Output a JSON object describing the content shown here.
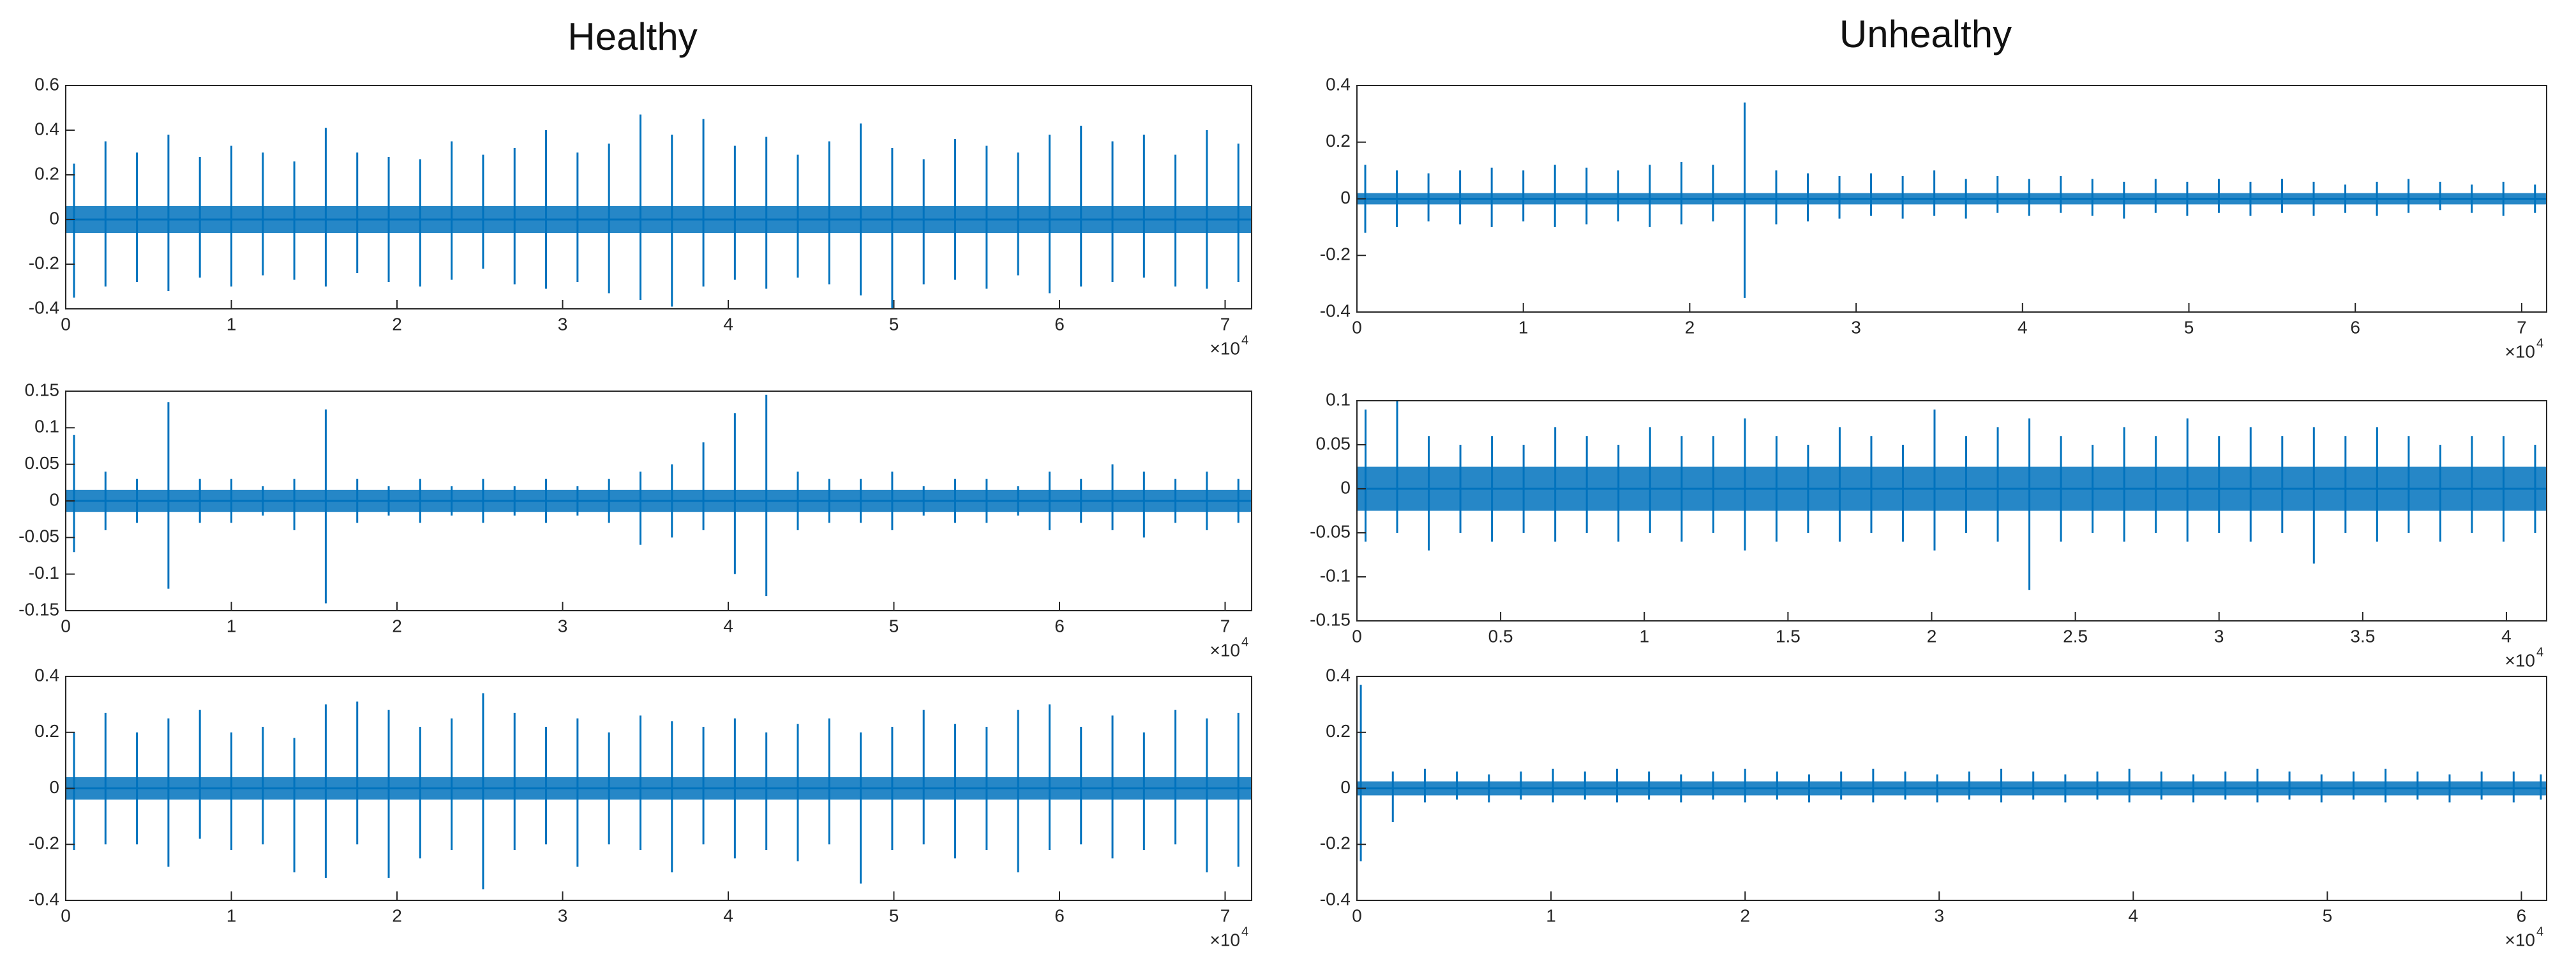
{
  "column_titles": [
    "Healthy",
    "Unhealthy"
  ],
  "chart_data": [
    {
      "type": "spikes",
      "color": "#0072BD",
      "x": [
        0.05,
        0.24,
        0.43,
        0.62,
        0.81,
        1.0,
        1.19,
        1.38,
        1.57,
        1.76,
        1.95,
        2.14,
        2.33,
        2.52,
        2.71,
        2.9,
        3.09,
        3.28,
        3.47,
        3.66,
        3.85,
        4.04,
        4.23,
        4.42,
        4.61,
        4.8,
        4.99,
        5.18,
        5.37,
        5.56,
        5.75,
        5.94,
        6.13,
        6.32,
        6.51,
        6.7,
        6.89,
        7.08
      ],
      "upper": [
        0.25,
        0.35,
        0.3,
        0.38,
        0.28,
        0.33,
        0.3,
        0.26,
        0.41,
        0.3,
        0.28,
        0.27,
        0.35,
        0.29,
        0.32,
        0.4,
        0.3,
        0.34,
        0.47,
        0.38,
        0.45,
        0.33,
        0.37,
        0.29,
        0.35,
        0.43,
        0.32,
        0.27,
        0.36,
        0.33,
        0.3,
        0.38,
        0.42,
        0.35,
        0.38,
        0.29,
        0.4,
        0.34
      ],
      "lower": [
        -0.35,
        -0.3,
        -0.28,
        -0.32,
        -0.26,
        -0.3,
        -0.25,
        -0.27,
        -0.3,
        -0.24,
        -0.28,
        -0.3,
        -0.27,
        -0.22,
        -0.29,
        -0.31,
        -0.28,
        -0.33,
        -0.36,
        -0.39,
        -0.3,
        -0.27,
        -0.31,
        -0.26,
        -0.29,
        -0.34,
        -0.4,
        -0.29,
        -0.27,
        -0.31,
        -0.25,
        -0.33,
        -0.3,
        -0.28,
        -0.26,
        -0.3,
        -0.31,
        -0.28
      ],
      "noise": 0.06,
      "xlim": [
        0,
        7.16
      ],
      "xticks": [
        0,
        1,
        2,
        3,
        4,
        5,
        6,
        7
      ],
      "ylim": [
        -0.4,
        0.6
      ],
      "yticks": [
        -0.4,
        -0.2,
        0,
        0.2,
        0.4,
        0.6
      ],
      "x_exponent_base": "×10",
      "x_exponent": "4"
    },
    {
      "type": "spikes",
      "color": "#0072BD",
      "x": [
        0.05,
        0.24,
        0.43,
        0.62,
        0.81,
        1.0,
        1.19,
        1.38,
        1.57,
        1.76,
        1.95,
        2.14,
        2.33,
        2.52,
        2.71,
        2.9,
        3.09,
        3.28,
        3.47,
        3.66,
        3.85,
        4.04,
        4.23,
        4.42,
        4.61,
        4.8,
        4.99,
        5.18,
        5.37,
        5.56,
        5.75,
        5.94,
        6.13,
        6.32,
        6.51,
        6.7,
        6.89,
        7.08
      ],
      "upper": [
        0.09,
        0.04,
        0.03,
        0.135,
        0.03,
        0.03,
        0.02,
        0.03,
        0.125,
        0.03,
        0.02,
        0.03,
        0.02,
        0.03,
        0.02,
        0.03,
        0.02,
        0.03,
        0.04,
        0.05,
        0.08,
        0.12,
        0.145,
        0.04,
        0.03,
        0.03,
        0.04,
        0.02,
        0.03,
        0.03,
        0.02,
        0.04,
        0.03,
        0.05,
        0.04,
        0.03,
        0.04,
        0.03
      ],
      "lower": [
        -0.07,
        -0.04,
        -0.03,
        -0.12,
        -0.03,
        -0.03,
        -0.02,
        -0.04,
        -0.14,
        -0.03,
        -0.02,
        -0.03,
        -0.02,
        -0.03,
        -0.02,
        -0.03,
        -0.02,
        -0.03,
        -0.06,
        -0.05,
        -0.04,
        -0.1,
        -0.13,
        -0.04,
        -0.03,
        -0.03,
        -0.04,
        -0.02,
        -0.03,
        -0.03,
        -0.02,
        -0.04,
        -0.03,
        -0.04,
        -0.05,
        -0.03,
        -0.04,
        -0.03
      ],
      "noise": 0.015,
      "xlim": [
        0,
        7.16
      ],
      "xticks": [
        0,
        1,
        2,
        3,
        4,
        5,
        6,
        7
      ],
      "ylim": [
        -0.15,
        0.15
      ],
      "yticks": [
        -0.15,
        -0.1,
        -0.05,
        0,
        0.05,
        0.1,
        0.15
      ],
      "x_exponent_base": "×10",
      "x_exponent": "4"
    },
    {
      "type": "spikes",
      "color": "#0072BD",
      "x": [
        0.05,
        0.24,
        0.43,
        0.62,
        0.81,
        1.0,
        1.19,
        1.38,
        1.57,
        1.76,
        1.95,
        2.14,
        2.33,
        2.52,
        2.71,
        2.9,
        3.09,
        3.28,
        3.47,
        3.66,
        3.85,
        4.04,
        4.23,
        4.42,
        4.61,
        4.8,
        4.99,
        5.18,
        5.37,
        5.56,
        5.75,
        5.94,
        6.13,
        6.32,
        6.51,
        6.7,
        6.89,
        7.08
      ],
      "upper": [
        0.2,
        0.27,
        0.2,
        0.25,
        0.28,
        0.2,
        0.22,
        0.18,
        0.3,
        0.31,
        0.28,
        0.22,
        0.25,
        0.34,
        0.27,
        0.22,
        0.25,
        0.2,
        0.26,
        0.24,
        0.22,
        0.25,
        0.2,
        0.23,
        0.25,
        0.2,
        0.22,
        0.28,
        0.23,
        0.22,
        0.28,
        0.3,
        0.22,
        0.26,
        0.2,
        0.28,
        0.25,
        0.27
      ],
      "lower": [
        -0.22,
        -0.2,
        -0.2,
        -0.28,
        -0.18,
        -0.22,
        -0.2,
        -0.3,
        -0.32,
        -0.2,
        -0.32,
        -0.25,
        -0.22,
        -0.36,
        -0.22,
        -0.2,
        -0.28,
        -0.2,
        -0.22,
        -0.3,
        -0.2,
        -0.25,
        -0.22,
        -0.26,
        -0.2,
        -0.34,
        -0.22,
        -0.2,
        -0.25,
        -0.22,
        -0.3,
        -0.22,
        -0.2,
        -0.25,
        -0.22,
        -0.2,
        -0.3,
        -0.28
      ],
      "noise": 0.04,
      "xlim": [
        0,
        7.16
      ],
      "xticks": [
        0,
        1,
        2,
        3,
        4,
        5,
        6,
        7
      ],
      "ylim": [
        -0.4,
        0.4
      ],
      "yticks": [
        -0.4,
        -0.2,
        0,
        0.2,
        0.4
      ],
      "x_exponent_base": "×10",
      "x_exponent": "4"
    },
    {
      "type": "spikes",
      "color": "#0072BD",
      "x": [
        0.05,
        0.24,
        0.43,
        0.62,
        0.81,
        1.0,
        1.19,
        1.38,
        1.57,
        1.76,
        1.95,
        2.14,
        2.33,
        2.52,
        2.71,
        2.9,
        3.09,
        3.28,
        3.47,
        3.66,
        3.85,
        4.04,
        4.23,
        4.42,
        4.61,
        4.8,
        4.99,
        5.18,
        5.37,
        5.56,
        5.75,
        5.94,
        6.13,
        6.32,
        6.51,
        6.7,
        6.89,
        7.08
      ],
      "upper": [
        0.12,
        0.1,
        0.09,
        0.1,
        0.11,
        0.1,
        0.12,
        0.11,
        0.1,
        0.12,
        0.13,
        0.12,
        0.34,
        0.1,
        0.09,
        0.08,
        0.09,
        0.08,
        0.1,
        0.07,
        0.08,
        0.07,
        0.08,
        0.07,
        0.06,
        0.07,
        0.06,
        0.07,
        0.06,
        0.07,
        0.06,
        0.05,
        0.06,
        0.07,
        0.06,
        0.05,
        0.06,
        0.05
      ],
      "lower": [
        -0.12,
        -0.1,
        -0.08,
        -0.09,
        -0.1,
        -0.08,
        -0.1,
        -0.09,
        -0.08,
        -0.1,
        -0.09,
        -0.08,
        -0.35,
        -0.09,
        -0.08,
        -0.07,
        -0.06,
        -0.07,
        -0.06,
        -0.07,
        -0.05,
        -0.06,
        -0.05,
        -0.06,
        -0.07,
        -0.05,
        -0.06,
        -0.05,
        -0.06,
        -0.05,
        -0.06,
        -0.05,
        -0.06,
        -0.05,
        -0.04,
        -0.05,
        -0.06,
        -0.05
      ],
      "noise": 0.02,
      "xlim": [
        0,
        7.15
      ],
      "xticks": [
        0,
        1,
        2,
        3,
        4,
        5,
        6,
        7
      ],
      "ylim": [
        -0.4,
        0.4
      ],
      "yticks": [
        -0.4,
        -0.2,
        0,
        0.2,
        0.4
      ],
      "x_exponent_base": "×10",
      "x_exponent": "4"
    },
    {
      "type": "spikes",
      "color": "#0072BD",
      "x": [
        0.03,
        0.14,
        0.25,
        0.36,
        0.47,
        0.58,
        0.69,
        0.8,
        0.91,
        1.02,
        1.13,
        1.24,
        1.35,
        1.46,
        1.57,
        1.68,
        1.79,
        1.9,
        2.01,
        2.12,
        2.23,
        2.34,
        2.45,
        2.56,
        2.67,
        2.78,
        2.89,
        3.0,
        3.11,
        3.22,
        3.33,
        3.44,
        3.55,
        3.66,
        3.77,
        3.88,
        3.99,
        4.1
      ],
      "upper": [
        0.09,
        0.1,
        0.06,
        0.05,
        0.06,
        0.05,
        0.07,
        0.06,
        0.05,
        0.07,
        0.06,
        0.06,
        0.08,
        0.06,
        0.05,
        0.07,
        0.06,
        0.05,
        0.09,
        0.06,
        0.07,
        0.08,
        0.06,
        0.05,
        0.07,
        0.06,
        0.08,
        0.06,
        0.07,
        0.06,
        0.07,
        0.06,
        0.07,
        0.06,
        0.05,
        0.06,
        0.06,
        0.05
      ],
      "lower": [
        -0.06,
        -0.05,
        -0.07,
        -0.05,
        -0.06,
        -0.05,
        -0.06,
        -0.05,
        -0.06,
        -0.05,
        -0.06,
        -0.05,
        -0.07,
        -0.06,
        -0.05,
        -0.06,
        -0.05,
        -0.06,
        -0.07,
        -0.05,
        -0.06,
        -0.115,
        -0.06,
        -0.05,
        -0.06,
        -0.05,
        -0.06,
        -0.05,
        -0.06,
        -0.05,
        -0.085,
        -0.05,
        -0.06,
        -0.05,
        -0.06,
        -0.05,
        -0.06,
        -0.05
      ],
      "noise": 0.025,
      "xlim": [
        0,
        4.14
      ],
      "xticks": [
        0,
        0.5,
        1,
        1.5,
        2,
        2.5,
        3,
        3.5,
        4
      ],
      "ylim": [
        -0.15,
        0.1
      ],
      "yticks": [
        -0.15,
        -0.1,
        -0.05,
        0,
        0.05,
        0.1
      ],
      "x_exponent_base": "×10",
      "x_exponent": "4"
    },
    {
      "type": "spikes",
      "color": "#0072BD",
      "x": [
        0.02,
        0.185,
        0.35,
        0.515,
        0.68,
        0.845,
        1.01,
        1.175,
        1.34,
        1.505,
        1.67,
        1.835,
        2.0,
        2.165,
        2.33,
        2.495,
        2.66,
        2.825,
        2.99,
        3.155,
        3.32,
        3.485,
        3.65,
        3.815,
        3.98,
        4.145,
        4.31,
        4.475,
        4.64,
        4.805,
        4.97,
        5.135,
        5.3,
        5.465,
        5.63,
        5.795,
        5.96,
        6.1
      ],
      "upper": [
        0.37,
        0.06,
        0.07,
        0.06,
        0.05,
        0.06,
        0.07,
        0.06,
        0.07,
        0.06,
        0.05,
        0.06,
        0.07,
        0.06,
        0.05,
        0.06,
        0.07,
        0.06,
        0.05,
        0.06,
        0.07,
        0.06,
        0.05,
        0.06,
        0.07,
        0.06,
        0.05,
        0.06,
        0.07,
        0.06,
        0.05,
        0.06,
        0.07,
        0.06,
        0.05,
        0.06,
        0.06,
        0.05
      ],
      "lower": [
        -0.26,
        -0.12,
        -0.05,
        -0.04,
        -0.05,
        -0.04,
        -0.05,
        -0.04,
        -0.05,
        -0.04,
        -0.05,
        -0.04,
        -0.05,
        -0.04,
        -0.05,
        -0.04,
        -0.05,
        -0.04,
        -0.05,
        -0.04,
        -0.05,
        -0.04,
        -0.05,
        -0.04,
        -0.05,
        -0.04,
        -0.05,
        -0.04,
        -0.05,
        -0.04,
        -0.05,
        -0.04,
        -0.05,
        -0.04,
        -0.05,
        -0.04,
        -0.05,
        -0.04
      ],
      "noise": 0.025,
      "xlim": [
        0,
        6.13
      ],
      "xticks": [
        0,
        1,
        2,
        3,
        4,
        5,
        6
      ],
      "ylim": [
        -0.4,
        0.4
      ],
      "yticks": [
        -0.4,
        -0.2,
        0,
        0.2,
        0.4
      ],
      "x_exponent_base": "×10",
      "x_exponent": "4"
    }
  ]
}
